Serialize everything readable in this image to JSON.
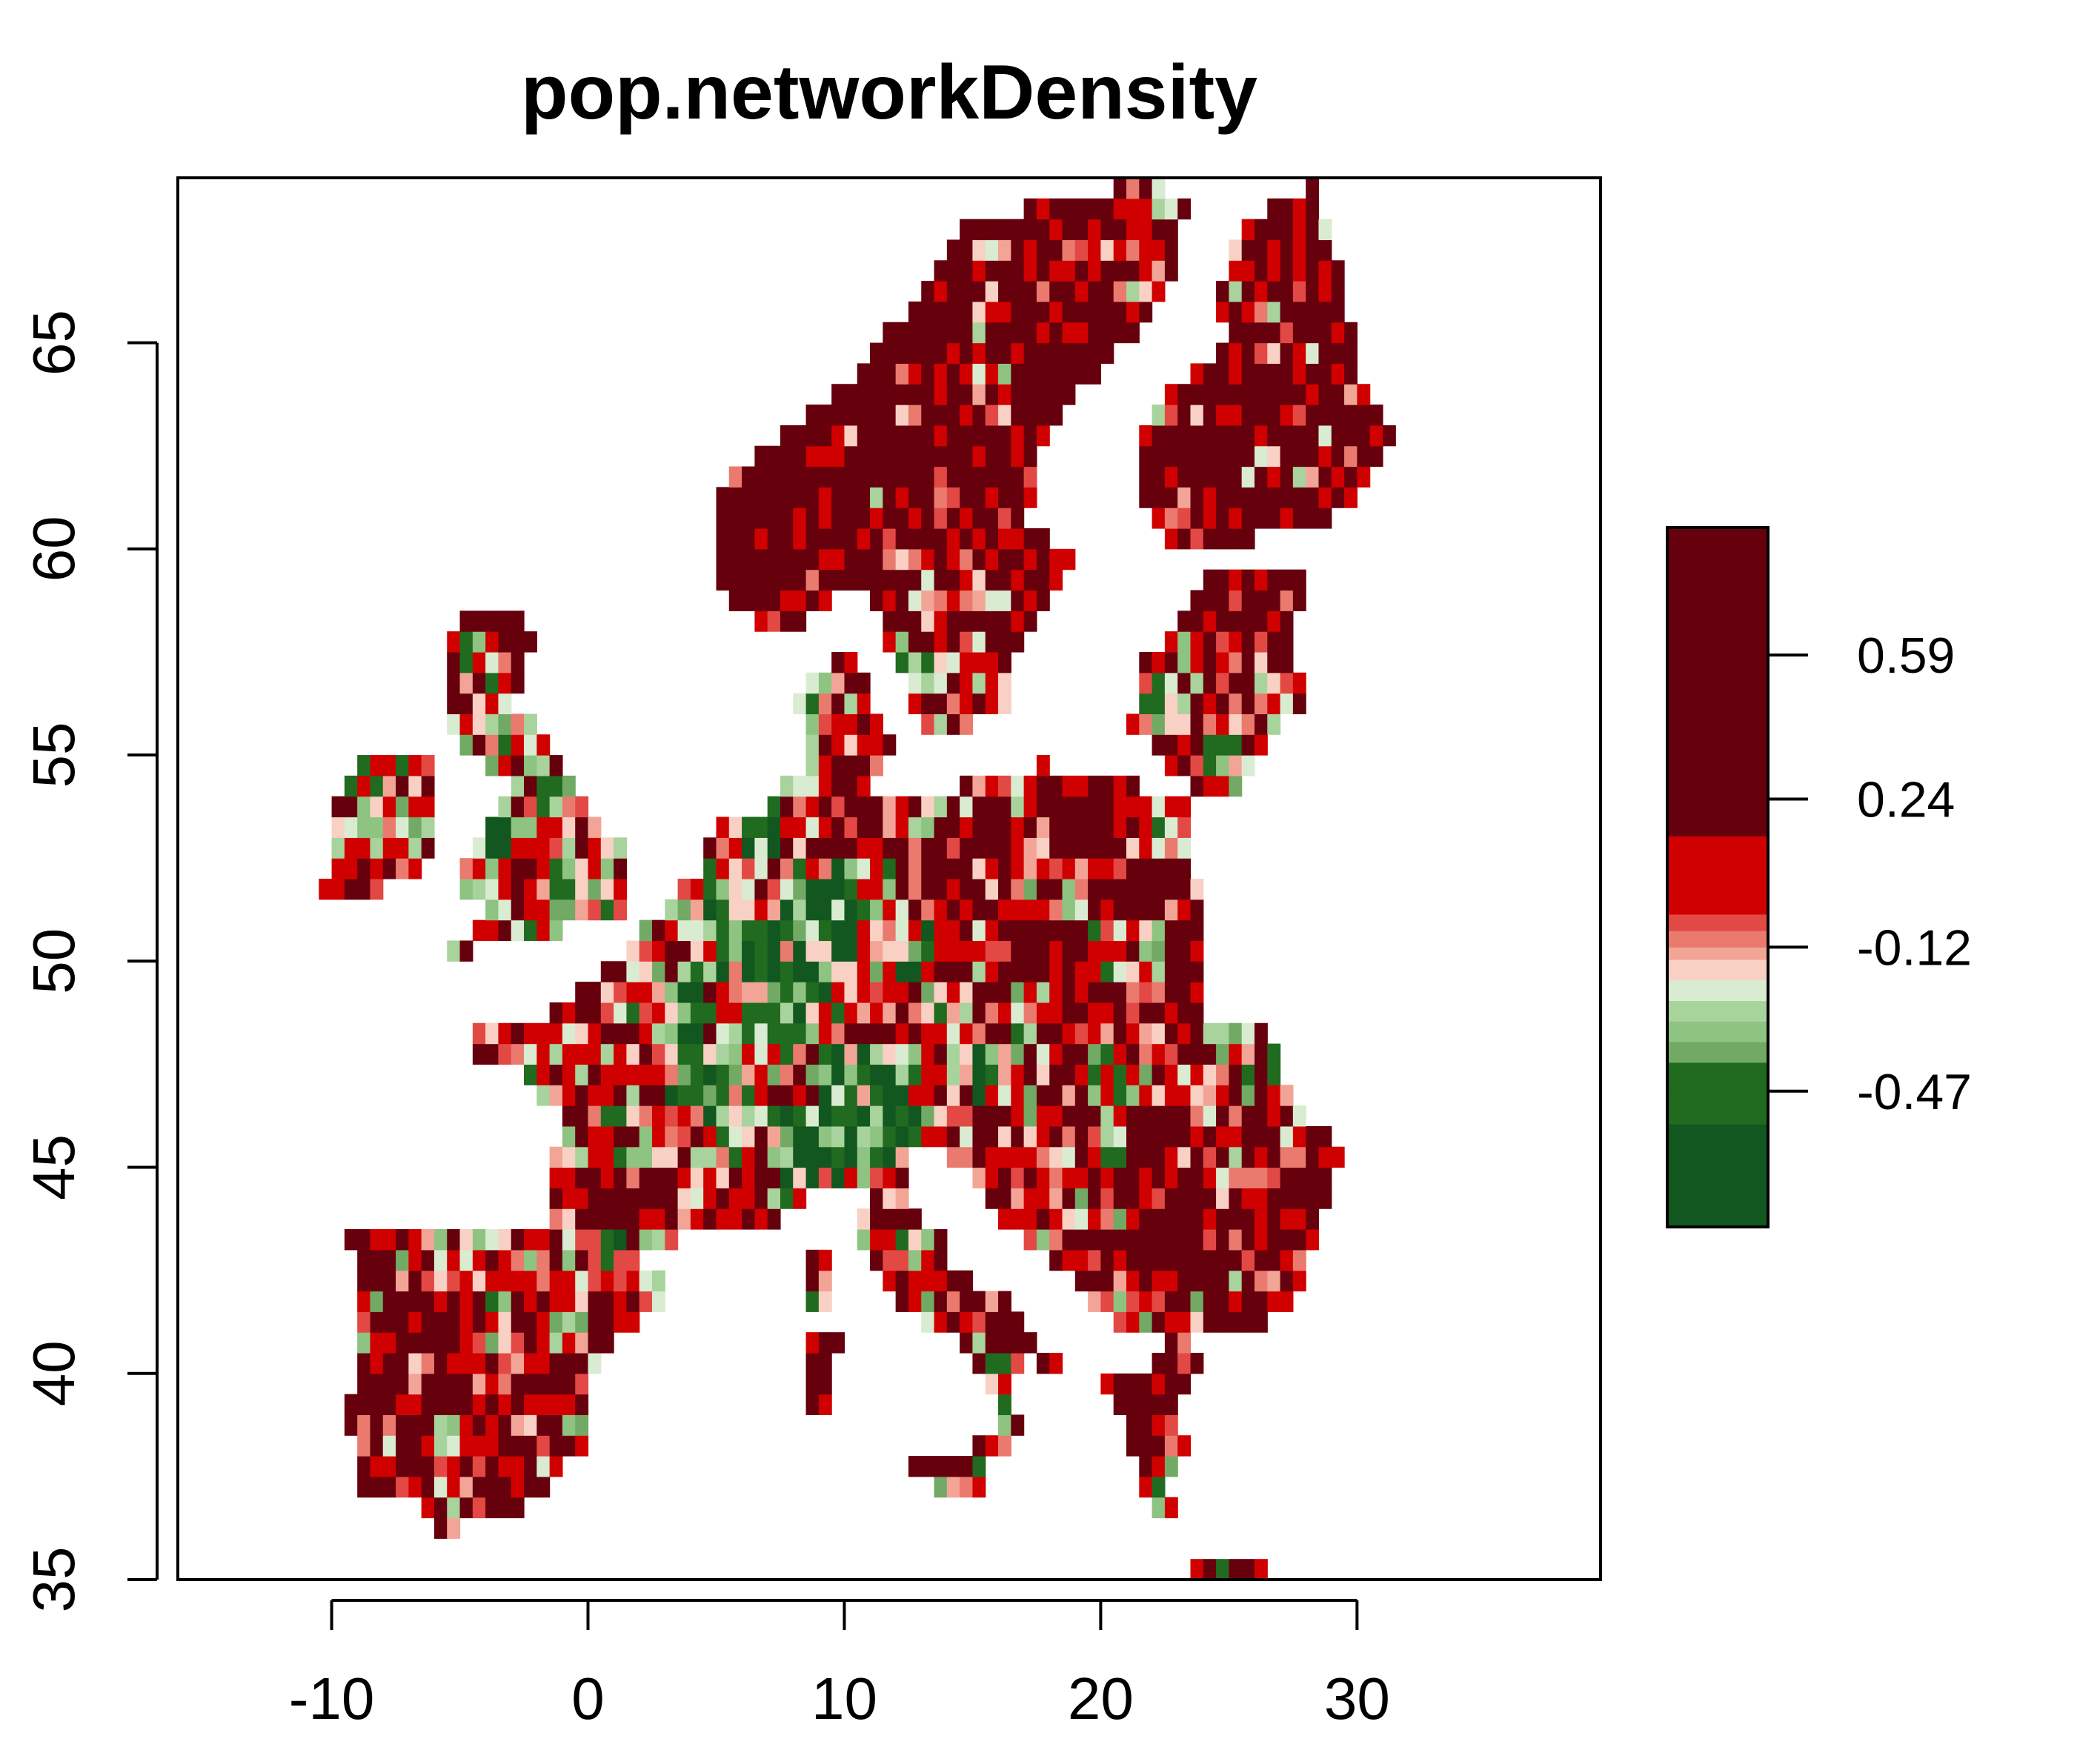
{
  "chart_data": {
    "type": "heatmap",
    "title": "pop.networkDensity",
    "xlabel": "",
    "ylabel": "",
    "xlim": [
      -16,
      39.5
    ],
    "ylim": [
      35,
      69
    ],
    "x_ticks": [
      "-10",
      "0",
      "10",
      "20",
      "30"
    ],
    "y_ticks": [
      "35",
      "40",
      "45",
      "50",
      "55",
      "60",
      "65"
    ],
    "x_tick_values": [
      -10,
      0,
      10,
      20,
      30
    ],
    "y_tick_values": [
      35,
      40,
      45,
      50,
      55,
      60,
      65
    ],
    "grid": false,
    "legend_position": "right",
    "cell_size_degrees": 0.5,
    "palette": [
      "#12571f",
      "#206b1f",
      "#72aa65",
      "#a8d39c",
      "#d9ecd2",
      "#f9d1c4",
      "#f2a596",
      "#e34944",
      "#d10000",
      "#67000d"
    ],
    "colorbar": {
      "min": -0.8,
      "max": 0.9,
      "tick_labels": [
        "0.59",
        "0.24",
        "-0.12",
        "-0.47"
      ],
      "tick_values": [
        0.59,
        0.24,
        -0.12,
        -0.47
      ],
      "breaks": [
        -0.8,
        -0.55,
        -0.47,
        -0.4,
        -0.35,
        -0.3,
        -0.25,
        -0.2,
        -0.15,
        -0.12,
        -0.08,
        -0.04,
        0.0,
        0.05,
        0.1,
        0.15,
        0.9
      ],
      "break_colors": [
        "#12571f",
        "#206b1f",
        "#206b1f",
        "#72aa65",
        "#8ec381",
        "#a8d39c",
        "#d9ecd2",
        "#f9d1c4",
        "#f2a596",
        "#ea7a6e",
        "#e34944",
        "#d10000",
        "#d10000",
        "#d10000",
        "#d10000",
        "#67000d"
      ]
    }
  }
}
